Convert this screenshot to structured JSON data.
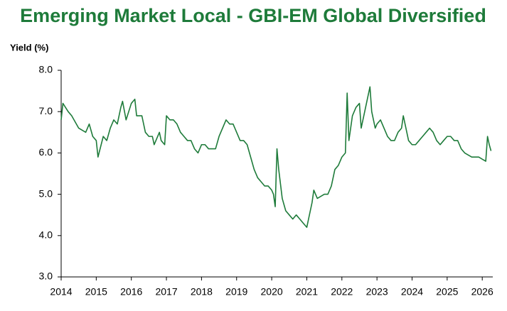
{
  "chart_data": {
    "type": "line",
    "title": "Emerging Market Local - GBI-EM Global Diversified",
    "y_label": "Yield (%)",
    "color": "#1e7b3a",
    "x": [
      2014.0,
      2014.05,
      2014.2,
      2014.3,
      2014.5,
      2014.7,
      2014.8,
      2014.9,
      2015.0,
      2015.05,
      2015.2,
      2015.3,
      2015.4,
      2015.5,
      2015.6,
      2015.7,
      2015.75,
      2015.85,
      2016.0,
      2016.1,
      2016.15,
      2016.3,
      2016.4,
      2016.5,
      2016.6,
      2016.65,
      2016.8,
      2016.85,
      2016.95,
      2017.0,
      2017.1,
      2017.2,
      2017.3,
      2017.4,
      2017.5,
      2017.6,
      2017.7,
      2017.8,
      2017.9,
      2018.0,
      2018.1,
      2018.2,
      2018.3,
      2018.4,
      2018.5,
      2018.6,
      2018.7,
      2018.8,
      2018.9,
      2019.0,
      2019.1,
      2019.2,
      2019.3,
      2019.4,
      2019.5,
      2019.6,
      2019.7,
      2019.8,
      2019.9,
      2020.0,
      2020.05,
      2020.1,
      2020.15,
      2020.2,
      2020.3,
      2020.4,
      2020.5,
      2020.6,
      2020.7,
      2020.8,
      2020.9,
      2021.0,
      2021.05,
      2021.15,
      2021.2,
      2021.3,
      2021.5,
      2021.6,
      2021.7,
      2021.8,
      2021.9,
      2022.0,
      2022.1,
      2022.15,
      2022.2,
      2022.3,
      2022.4,
      2022.5,
      2022.55,
      2022.7,
      2022.8,
      2022.85,
      2022.95,
      2023.0,
      2023.1,
      2023.2,
      2023.3,
      2023.4,
      2023.5,
      2023.6,
      2023.7,
      2023.75,
      2023.85,
      2023.9,
      2024.0,
      2024.1,
      2024.2,
      2024.3,
      2024.4,
      2024.5,
      2024.6,
      2024.7,
      2024.8,
      2024.9,
      2025.0,
      2025.1,
      2025.2,
      2025.3,
      2025.4,
      2025.5,
      2025.6,
      2025.7,
      2025.8,
      2025.9,
      2026.0,
      2026.1,
      2026.15,
      2026.2,
      2026.25
    ],
    "values": [
      6.8,
      7.2,
      7.0,
      6.9,
      6.6,
      6.5,
      6.7,
      6.4,
      6.3,
      5.9,
      6.4,
      6.3,
      6.6,
      6.8,
      6.7,
      7.1,
      7.25,
      6.8,
      7.2,
      7.3,
      6.9,
      6.9,
      6.5,
      6.4,
      6.4,
      6.2,
      6.5,
      6.3,
      6.2,
      6.9,
      6.8,
      6.8,
      6.7,
      6.5,
      6.4,
      6.3,
      6.3,
      6.1,
      6.0,
      6.2,
      6.2,
      6.1,
      6.1,
      6.1,
      6.4,
      6.6,
      6.8,
      6.7,
      6.7,
      6.5,
      6.3,
      6.3,
      6.2,
      5.9,
      5.6,
      5.4,
      5.3,
      5.2,
      5.2,
      5.1,
      5.0,
      4.7,
      6.1,
      5.6,
      4.9,
      4.6,
      4.5,
      4.4,
      4.5,
      4.4,
      4.3,
      4.2,
      4.4,
      4.8,
      5.1,
      4.9,
      5.0,
      5.0,
      5.2,
      5.6,
      5.7,
      5.9,
      6.0,
      7.45,
      6.3,
      6.9,
      7.1,
      7.2,
      6.6,
      7.2,
      7.6,
      7.0,
      6.6,
      6.7,
      6.8,
      6.6,
      6.4,
      6.3,
      6.3,
      6.5,
      6.6,
      6.9,
      6.5,
      6.3,
      6.2,
      6.2,
      6.3,
      6.4,
      6.5,
      6.6,
      6.5,
      6.3,
      6.2,
      6.3,
      6.4,
      6.4,
      6.3,
      6.3,
      6.1,
      6.0,
      5.95,
      5.9,
      5.9,
      5.9,
      5.85,
      5.8,
      6.4,
      6.2,
      6.05
    ],
    "xlim": [
      2014,
      2026.3
    ],
    "xticks": [
      2014,
      2015,
      2016,
      2017,
      2018,
      2019,
      2020,
      2021,
      2022,
      2023,
      2024,
      2025,
      2026
    ],
    "ylim": [
      3,
      8
    ],
    "yticks": [
      {
        "value": 3,
        "label": "3.0"
      },
      {
        "value": 4,
        "label": "4.0"
      },
      {
        "value": 5,
        "label": "5.0"
      },
      {
        "value": 6,
        "label": "6.0"
      },
      {
        "value": 7,
        "label": "7.0"
      },
      {
        "value": 8,
        "label": "8.0"
      }
    ],
    "grid": false
  }
}
